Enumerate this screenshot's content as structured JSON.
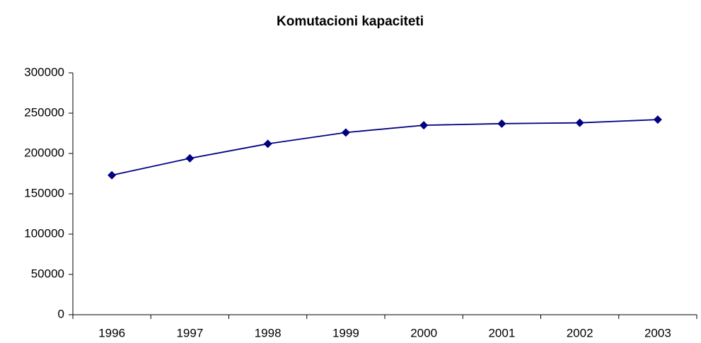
{
  "chart_data": {
    "type": "line",
    "title": "Komutacioni kapaciteti",
    "categories": [
      "1996",
      "1997",
      "1998",
      "1999",
      "2000",
      "2001",
      "2002",
      "2003"
    ],
    "series": [
      {
        "color": "#000080",
        "values": [
          173000,
          194000,
          212000,
          226000,
          235000,
          237000,
          238000,
          242000
        ]
      }
    ],
    "ylim": [
      0,
      300000
    ],
    "yticks": [
      0,
      50000,
      100000,
      150000,
      200000,
      250000,
      300000
    ],
    "grid": false
  }
}
